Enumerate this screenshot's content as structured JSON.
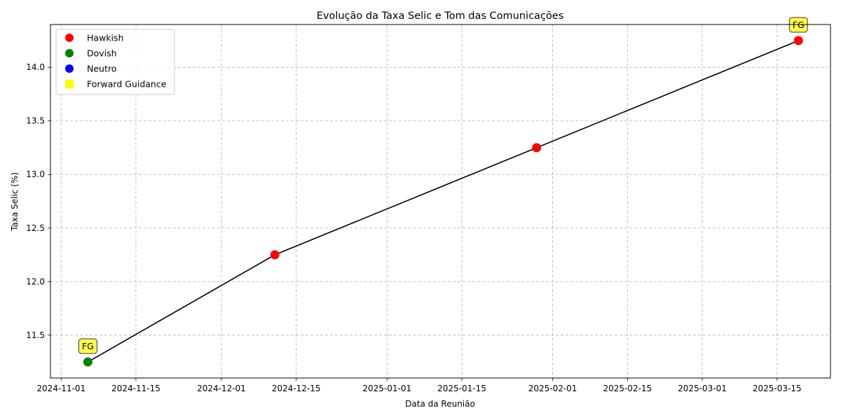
{
  "chart_data": {
    "type": "line",
    "title": "Evolução da Taxa Selic e Tom das Comunicações",
    "xlabel": "Data da Reunião",
    "ylabel": "Taxa Selic (%)",
    "xlim": [
      "2024-10-30",
      "2025-03-25"
    ],
    "ylim": [
      11.1,
      14.4
    ],
    "x_ticks": [
      "2024-11-01",
      "2024-11-15",
      "2024-12-01",
      "2024-12-15",
      "2025-01-01",
      "2025-01-15",
      "2025-02-01",
      "2025-02-15",
      "2025-03-01",
      "2025-03-15"
    ],
    "y_ticks": [
      11.5,
      12.0,
      12.5,
      13.0,
      13.5,
      14.0
    ],
    "y_tick_labels": [
      "11.5",
      "12.0",
      "12.5",
      "13.0",
      "13.5",
      "14.0"
    ],
    "grid": true,
    "line_color": "#000000",
    "points": [
      {
        "x": "2024-11-06",
        "y": 11.25,
        "tone": "Dovish",
        "forward_guidance": true
      },
      {
        "x": "2024-12-11",
        "y": 12.25,
        "tone": "Hawkish",
        "forward_guidance": false
      },
      {
        "x": "2025-01-29",
        "y": 13.25,
        "tone": "Hawkish",
        "forward_guidance": false
      },
      {
        "x": "2025-03-19",
        "y": 14.25,
        "tone": "Hawkish",
        "forward_guidance": true
      }
    ],
    "annotation_text": "FG",
    "tone_colors": {
      "Hawkish": "#ff0000",
      "Dovish": "#008000",
      "Neutro": "#0000ff"
    },
    "fg_color": "#ffff33",
    "legend": {
      "position": "upper-left",
      "entries": [
        {
          "label": "Hawkish",
          "marker": "circle",
          "color": "#ff0000"
        },
        {
          "label": "Dovish",
          "marker": "circle",
          "color": "#008000"
        },
        {
          "label": "Neutro",
          "marker": "circle",
          "color": "#0000ff"
        },
        {
          "label": "Forward Guidance",
          "marker": "square",
          "color": "#ffff00"
        }
      ]
    }
  }
}
